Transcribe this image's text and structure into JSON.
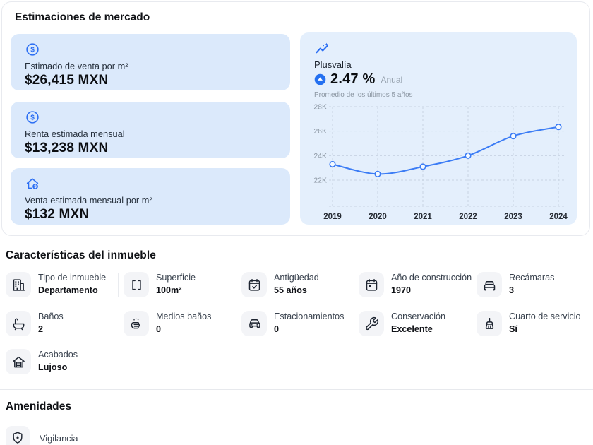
{
  "market": {
    "title": "Estimaciones de mercado",
    "estimates": [
      {
        "icon": "dollar-circle-icon",
        "label": "Estimado de venta por m²",
        "value": "$26,415 MXN"
      },
      {
        "icon": "dollar-circle-icon",
        "label": "Renta estimada mensual",
        "value": "$13,238 MXN"
      },
      {
        "icon": "house-dollar-icon",
        "label": "Venta estimada mensual por m²",
        "value": "$132 MXN"
      }
    ],
    "plusvalia": {
      "icon": "trend-sparkle-icon",
      "title": "Plusvalía",
      "badge_icon": "arrow-up-circle-icon",
      "rate": "2.47 %",
      "period": "Anual",
      "subtitle": "Promedio de los últimos 5 años"
    }
  },
  "chart_data": {
    "type": "line",
    "x": [
      "2019",
      "2020",
      "2021",
      "2022",
      "2023",
      "2024"
    ],
    "values": [
      23300,
      22500,
      23100,
      24000,
      25600,
      26350
    ],
    "title": "",
    "xlabel": "",
    "ylabel": "",
    "ylim": [
      20000,
      28000
    ],
    "yticks": [
      22000,
      24000,
      26000,
      28000
    ],
    "ytick_labels": [
      "22K",
      "24K",
      "26K",
      "28K"
    ],
    "grid": "dashed",
    "legend": "none",
    "line_color": "#3b7cf5",
    "marker": "open-circle"
  },
  "features": {
    "title": "Características del inmueble",
    "items": [
      {
        "icon": "building-icon",
        "label": "Tipo de inmueble",
        "value": "Departamento"
      },
      {
        "icon": "area-brackets-icon",
        "label": "Superficie",
        "value": "100m²"
      },
      {
        "icon": "calendar-check-icon",
        "label": "Antigüedad",
        "value": "55 años"
      },
      {
        "icon": "calendar-icon",
        "label": "Año de construcción",
        "value": "1970"
      },
      {
        "icon": "bed-icon",
        "label": "Recámaras",
        "value": "3"
      },
      {
        "icon": "bathtub-icon",
        "label": "Baños",
        "value": "2"
      },
      {
        "icon": "half-bath-icon",
        "label": "Medios baños",
        "value": "0"
      },
      {
        "icon": "car-icon",
        "label": "Estacionamientos",
        "value": "0"
      },
      {
        "icon": "tools-icon",
        "label": "Conservación",
        "value": "Excelente"
      },
      {
        "icon": "broom-icon",
        "label": "Cuarto de servicio",
        "value": "Sí"
      },
      {
        "icon": "garage-icon",
        "label": "Acabados",
        "value": "Lujoso"
      }
    ]
  },
  "amenities": {
    "title": "Amenidades",
    "items": [
      {
        "icon": "shield-star-icon",
        "label": "Vigilancia"
      }
    ]
  },
  "colors": {
    "accent_blue": "#2b6ef3",
    "card_blue": "#dbe9fb",
    "chart_card_blue": "#e4effc",
    "grid_dash": "#c7d3e2",
    "icon_box_gray": "#f3f4f7"
  }
}
